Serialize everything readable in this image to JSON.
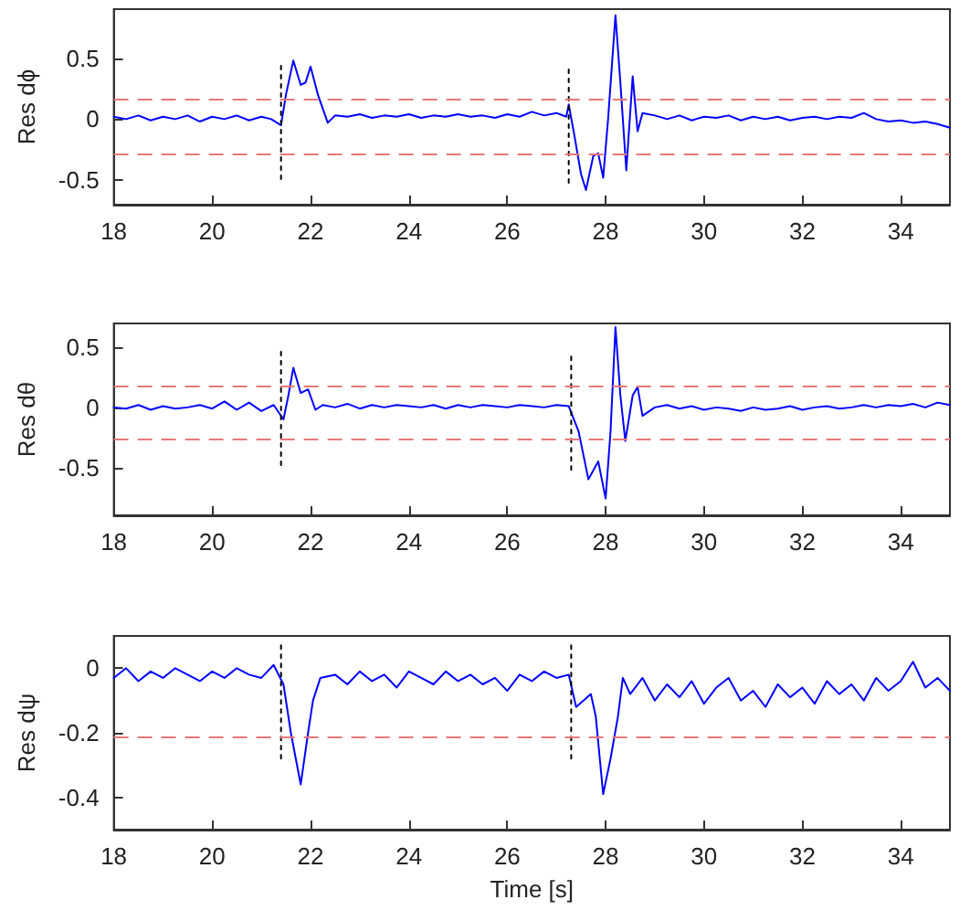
{
  "chart_data": [
    {
      "type": "line",
      "ylabel": "Res dϕ",
      "xlim": [
        18,
        35
      ],
      "xticks": [
        18,
        20,
        22,
        24,
        26,
        28,
        30,
        32,
        34
      ],
      "ylim": [
        -0.7,
        0.9
      ],
      "yticks": [
        -0.5,
        0,
        0.5
      ],
      "grid": false,
      "marker": "none",
      "series": [
        {
          "color": "#0000ff",
          "x": [
            18,
            18.25,
            18.5,
            18.75,
            19,
            19.25,
            19.5,
            19.75,
            20,
            20.25,
            20.5,
            20.75,
            21,
            21.2,
            21.4,
            21.5,
            21.65,
            21.8,
            21.9,
            22.0,
            22.15,
            22.35,
            22.5,
            22.75,
            23,
            23.25,
            23.5,
            23.75,
            24,
            24.25,
            24.5,
            24.75,
            25,
            25.25,
            25.5,
            25.75,
            26,
            26.25,
            26.5,
            26.75,
            27,
            27.2,
            27.25,
            27.35,
            27.5,
            27.6,
            27.75,
            27.85,
            27.95,
            28.05,
            28.2,
            28.3,
            28.42,
            28.55,
            28.65,
            28.75,
            29,
            29.25,
            29.5,
            29.75,
            30,
            30.25,
            30.5,
            30.75,
            31,
            31.25,
            31.5,
            31.75,
            32,
            32.25,
            32.5,
            32.75,
            33,
            33.25,
            33.5,
            33.75,
            34,
            34.25,
            34.5,
            34.75,
            35
          ],
          "values": [
            0.02,
            0.0,
            0.03,
            -0.01,
            0.02,
            0.0,
            0.03,
            -0.02,
            0.02,
            0.0,
            0.03,
            -0.01,
            0.02,
            0.0,
            -0.05,
            0.2,
            0.48,
            0.28,
            0.3,
            0.43,
            0.2,
            -0.03,
            0.03,
            0.02,
            0.04,
            0.01,
            0.03,
            0.02,
            0.04,
            0.01,
            0.03,
            0.02,
            0.04,
            0.02,
            0.03,
            0.01,
            0.04,
            0.02,
            0.06,
            0.03,
            0.05,
            0.02,
            0.12,
            -0.1,
            -0.45,
            -0.58,
            -0.3,
            -0.28,
            -0.48,
            0.0,
            0.85,
            0.3,
            -0.42,
            0.35,
            -0.1,
            0.05,
            0.03,
            0.0,
            0.03,
            -0.01,
            0.02,
            0.01,
            0.03,
            -0.01,
            0.02,
            0.0,
            0.02,
            -0.01,
            0.01,
            0.02,
            0.0,
            0.02,
            0.01,
            0.05,
            0.0,
            -0.02,
            -0.01,
            -0.03,
            -0.02,
            -0.04,
            -0.07
          ]
        },
        {
          "color": "#000000",
          "line_style": "dotted",
          "x": [
            21.4,
            21.4
          ],
          "values": [
            -0.49,
            0.46
          ]
        },
        {
          "color": "#000000",
          "line_style": "dotted",
          "x": [
            27.25,
            27.25
          ],
          "values": [
            -0.52,
            0.43
          ]
        }
      ],
      "ref_lines": [
        {
          "axis": "y",
          "value": 0.17,
          "label": null,
          "color": "#e87878",
          "line_style": "dashed"
        },
        {
          "axis": "y",
          "value": -0.29,
          "label": null,
          "color": "#e87878",
          "line_style": "dashed"
        }
      ]
    },
    {
      "type": "line",
      "ylabel": "Res dθ",
      "xlim": [
        18,
        35
      ],
      "xticks": [
        18,
        20,
        22,
        24,
        26,
        28,
        30,
        32,
        34
      ],
      "ylim": [
        -0.9,
        0.7
      ],
      "yticks": [
        -0.5,
        0,
        0.5
      ],
      "grid": false,
      "marker": "none",
      "series": [
        {
          "color": "#0000ff",
          "x": [
            18,
            18.25,
            18.5,
            18.75,
            19,
            19.25,
            19.5,
            19.75,
            20,
            20.25,
            20.5,
            20.75,
            21,
            21.25,
            21.45,
            21.55,
            21.65,
            21.8,
            21.95,
            22.1,
            22.25,
            22.5,
            22.75,
            23,
            23.25,
            23.5,
            23.75,
            24,
            24.25,
            24.5,
            24.75,
            25,
            25.25,
            25.5,
            25.75,
            26,
            26.25,
            26.5,
            26.75,
            27,
            27.25,
            27.45,
            27.65,
            27.85,
            28.0,
            28.1,
            28.2,
            28.3,
            28.4,
            28.55,
            28.65,
            28.75,
            29,
            29.25,
            29.5,
            29.75,
            30,
            30.25,
            30.5,
            30.75,
            31,
            31.25,
            31.5,
            31.75,
            32,
            32.25,
            32.5,
            32.75,
            33,
            33.25,
            33.5,
            33.75,
            34,
            34.25,
            34.5,
            34.75,
            35
          ],
          "values": [
            0.0,
            -0.01,
            0.02,
            -0.02,
            0.01,
            -0.01,
            0.0,
            0.02,
            -0.01,
            0.05,
            -0.02,
            0.04,
            -0.03,
            0.02,
            -0.1,
            0.1,
            0.33,
            0.12,
            0.15,
            -0.02,
            0.02,
            0.0,
            0.03,
            -0.01,
            0.02,
            0.0,
            0.02,
            0.01,
            0.0,
            0.02,
            -0.01,
            0.02,
            0.0,
            0.02,
            0.01,
            0.0,
            0.02,
            0.01,
            0.0,
            0.02,
            0.01,
            -0.2,
            -0.6,
            -0.45,
            -0.76,
            -0.2,
            0.67,
            0.1,
            -0.28,
            0.1,
            0.17,
            -0.07,
            0.0,
            0.02,
            -0.01,
            0.01,
            -0.02,
            0.0,
            -0.01,
            -0.03,
            0.0,
            -0.02,
            -0.01,
            0.01,
            -0.02,
            0.0,
            0.01,
            -0.01,
            0.0,
            0.02,
            0.0,
            0.02,
            0.01,
            0.03,
            0.0,
            0.04,
            0.02
          ]
        },
        {
          "color": "#000000",
          "line_style": "dotted",
          "x": [
            21.4,
            21.4
          ],
          "values": [
            -0.48,
            0.48
          ]
        },
        {
          "color": "#000000",
          "line_style": "dotted",
          "x": [
            27.3,
            27.3
          ],
          "values": [
            -0.52,
            0.43
          ]
        }
      ],
      "ref_lines": [
        {
          "axis": "y",
          "value": 0.18,
          "label": null,
          "color": "#e87878",
          "line_style": "dashed"
        },
        {
          "axis": "y",
          "value": -0.26,
          "label": null,
          "color": "#e87878",
          "line_style": "dashed"
        }
      ]
    },
    {
      "type": "line",
      "ylabel": "Res dψ",
      "xlabel": "Time [s]",
      "xlim": [
        18,
        35
      ],
      "xticks": [
        18,
        20,
        22,
        24,
        26,
        28,
        30,
        32,
        34
      ],
      "ylim": [
        -0.5,
        0.1
      ],
      "yticks": [
        -0.4,
        -0.2,
        0
      ],
      "grid": false,
      "marker": "none",
      "series": [
        {
          "color": "#0000ff",
          "x": [
            18,
            18.25,
            18.5,
            18.75,
            19,
            19.25,
            19.5,
            19.75,
            20,
            20.25,
            20.5,
            20.75,
            21,
            21.25,
            21.45,
            21.6,
            21.8,
            21.95,
            22.05,
            22.2,
            22.5,
            22.75,
            23,
            23.25,
            23.5,
            23.75,
            24,
            24.25,
            24.5,
            24.75,
            25,
            25.25,
            25.5,
            25.75,
            26,
            26.25,
            26.5,
            26.75,
            27,
            27.25,
            27.4,
            27.55,
            27.7,
            27.8,
            27.95,
            28.1,
            28.25,
            28.35,
            28.5,
            28.75,
            29,
            29.25,
            29.5,
            29.75,
            30,
            30.25,
            30.5,
            30.75,
            31,
            31.25,
            31.5,
            31.75,
            32,
            32.25,
            32.5,
            32.75,
            33,
            33.25,
            33.5,
            33.75,
            34,
            34.25,
            34.5,
            34.75,
            35
          ],
          "values": [
            -0.03,
            0.0,
            -0.04,
            -0.01,
            -0.03,
            0.0,
            -0.02,
            -0.04,
            -0.01,
            -0.03,
            0.0,
            -0.02,
            -0.03,
            0.01,
            -0.05,
            -0.2,
            -0.36,
            -0.2,
            -0.1,
            -0.03,
            -0.02,
            -0.05,
            -0.01,
            -0.04,
            -0.02,
            -0.06,
            -0.01,
            -0.03,
            -0.05,
            -0.01,
            -0.04,
            -0.02,
            -0.05,
            -0.03,
            -0.07,
            -0.02,
            -0.04,
            -0.01,
            -0.03,
            -0.02,
            -0.12,
            -0.1,
            -0.08,
            -0.15,
            -0.39,
            -0.28,
            -0.15,
            -0.03,
            -0.08,
            -0.03,
            -0.1,
            -0.05,
            -0.09,
            -0.04,
            -0.11,
            -0.06,
            -0.03,
            -0.1,
            -0.07,
            -0.12,
            -0.05,
            -0.09,
            -0.06,
            -0.11,
            -0.04,
            -0.08,
            -0.05,
            -0.1,
            -0.03,
            -0.07,
            -0.04,
            0.02,
            -0.06,
            -0.03,
            -0.07
          ]
        },
        {
          "color": "#000000",
          "line_style": "dotted",
          "x": [
            21.4,
            21.4
          ],
          "values": [
            -0.28,
            0.08
          ]
        },
        {
          "color": "#000000",
          "line_style": "dotted",
          "x": [
            27.3,
            27.3
          ],
          "values": [
            -0.28,
            0.08
          ]
        }
      ],
      "ref_lines": [
        {
          "axis": "y",
          "value": -0.21,
          "label": null,
          "color": "#e87878",
          "line_style": "dashed"
        }
      ]
    }
  ]
}
